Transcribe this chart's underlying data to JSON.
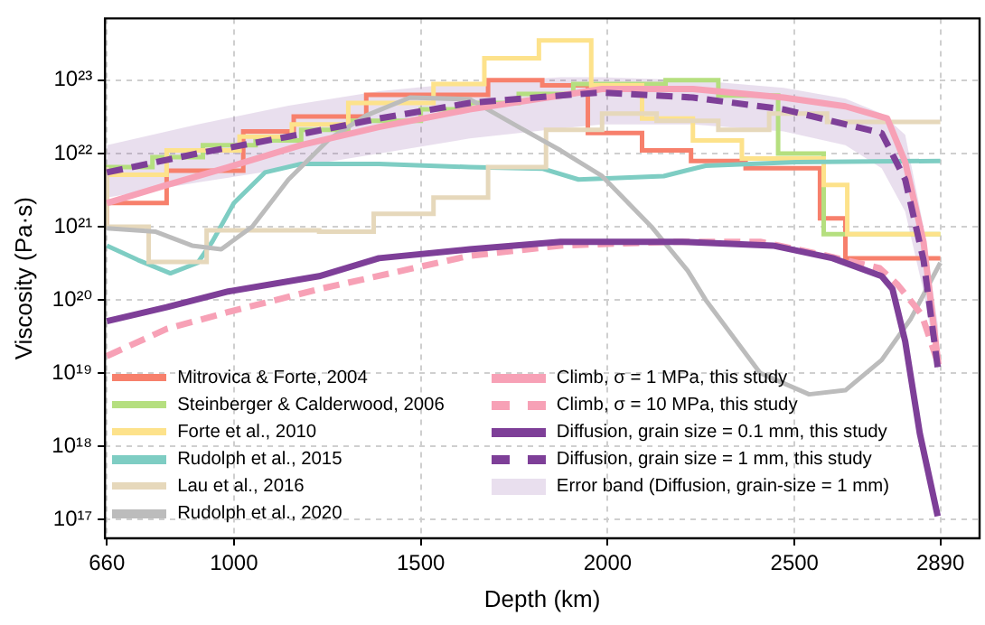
{
  "chart_data": {
    "type": "line",
    "xlabel": "Depth (km)",
    "ylabel": "Viscosity (Pa·s)",
    "log": "y",
    "grid": true,
    "legend": "bottom",
    "xlim": [
      655,
      2995
    ],
    "xticks": [
      660,
      1000,
      1500,
      2000,
      2500,
      2890
    ],
    "ylim": [
      5.5e+16,
      7e+23
    ],
    "yticks": [
      {
        "value": 1e+17,
        "label": "10¹⁷"
      },
      {
        "value": 1e+18,
        "label": "10¹⁸"
      },
      {
        "value": 1e+19,
        "label": "10¹⁹"
      },
      {
        "value": 1e+20,
        "label": "10²⁰"
      },
      {
        "value": 1e+21,
        "label": "10²¹"
      },
      {
        "value": 1e+22,
        "label": "10²²"
      },
      {
        "value": 1e+23,
        "label": "10²³"
      }
    ],
    "series": [
      {
        "name": "Mitrovica & Forte, 2004",
        "type": "step",
        "color": "#f7806c",
        "line_style": "solid",
        "x": [
          660,
          820,
          1025,
          1160,
          1354,
          1680,
          1825,
          1947,
          2092,
          2223,
          2369,
          2568,
          2636,
          2782,
          2890
        ],
        "values": [
          1e+21,
          2.1e+21,
          5.8e+21,
          2e+22,
          3.2e+22,
          6.3e+22,
          1e+23,
          8.5e+22,
          1.9e+22,
          1.1e+22,
          7.9e+21,
          6.3e+21,
          1.3e+21,
          3.7e+20,
          3.7e+20
        ]
      },
      {
        "name": "Steinberger & Calderwood, 2006",
        "type": "step",
        "color": "#b5df7f",
        "line_style": "solid",
        "x": [
          660,
          782,
          917,
          1058,
          1180,
          1306,
          1500,
          1631,
          1762,
          1908,
          2155,
          2296,
          2456,
          2578,
          2714,
          2890
        ],
        "values": [
          4.9e+21,
          6.5e+21,
          8.9e+21,
          1.3e+22,
          1.5e+22,
          2.1e+22,
          2.8e+22,
          4e+22,
          4.9e+22,
          6.5e+22,
          8.9e+22,
          1e+23,
          6.2e+22,
          1e+22,
          7.9e+20,
          7.9e+20
        ]
      },
      {
        "name": "Forte et al., 2010",
        "type": "step",
        "color": "#fde28b",
        "line_style": "solid",
        "x": [
          660,
          820,
          1015,
          1155,
          1306,
          1534,
          1670,
          1816,
          1956,
          2092,
          2228,
          2359,
          2578,
          2641,
          2786,
          2890
        ],
        "values": [
          1.7e+21,
          5.1e+21,
          1.1e+22,
          1.7e+22,
          2.5e+22,
          4.9e+22,
          8.9e+22,
          2e+23,
          3.5e+23,
          8.5e+22,
          3e+22,
          1.5e+22,
          8.5e+21,
          3.7e+21,
          7.9e+20,
          7.9e+20
        ]
      },
      {
        "name": "Rudolph et al., 2015",
        "type": "line",
        "color": "#7ecdc3",
        "line_style": "solid",
        "x": [
          660,
          743,
          830,
          903,
          942,
          1000,
          1083,
          1180,
          1388,
          1631,
          1825,
          1922,
          2150,
          2262,
          2505,
          2890
        ],
        "values": [
          5.5e+20,
          3.5e+20,
          2.3e+20,
          3.2e+20,
          6.2e+20,
          2.1e+21,
          5.5e+21,
          7.2e+21,
          7.2e+21,
          6.5e+21,
          6.2e+21,
          4.4e+21,
          4.9e+21,
          6.8e+21,
          7.6e+21,
          7.9e+21
        ]
      },
      {
        "name": "Lau et al., 2016",
        "type": "step",
        "color": "#e6d8bb",
        "line_style": "solid",
        "x": [
          660,
          772,
          927,
          1228,
          1374,
          1534,
          1680,
          1835,
          1985,
          2131,
          2296,
          2432,
          2587,
          2748,
          2890
        ],
        "values": [
          6.5e+21,
          1e+21,
          3.3e+20,
          8.9e+20,
          8.5e+20,
          1.5e+21,
          2.5e+21,
          6.5e+21,
          2.1e+22,
          3.5e+22,
          2.8e+22,
          2.1e+22,
          3.5e+22,
          2.7e+22,
          2.7e+22
        ]
      },
      {
        "name": "Rudolph et al., 2020",
        "type": "line",
        "color": "#bcbcbc",
        "line_style": "solid",
        "x": [
          660,
          791,
          888,
          966,
          1049,
          1146,
          1257,
          1354,
          1471,
          1631,
          1762,
          1874,
          1985,
          2117,
          2214,
          2262,
          2408,
          2539,
          2636,
          2733,
          2811,
          2890
        ],
        "values": [
          9.5e+20,
          8.5e+20,
          5.5e+20,
          4.9e+20,
          1e+21,
          4.4e+21,
          1.6e+22,
          3.3e+22,
          5.8e+22,
          5.5e+22,
          2.3e+22,
          1.1e+22,
          4.9e+21,
          1e+21,
          2.5e+20,
          1e+20,
          1e+19,
          5.1e+18,
          5.8e+18,
          1.5e+19,
          5.5e+19,
          3.2e+20
        ]
      },
      {
        "name": "Climb, σ = 1 MPa, this study",
        "type": "line",
        "color": "#f7a1b6",
        "line_style": "solid",
        "x": [
          660,
          820,
          985,
          1180,
          1388,
          1631,
          1874,
          1985,
          2228,
          2471,
          2636,
          2748,
          2796,
          2845,
          2885
        ],
        "values": [
          2.1e+21,
          3.7e+21,
          6.5e+21,
          1.3e+22,
          2.3e+22,
          4e+22,
          6.2e+22,
          7.6e+22,
          7.6e+22,
          5.8e+22,
          4.4e+22,
          3e+22,
          7.6e+21,
          6.2e+20,
          1.3e+19
        ]
      },
      {
        "name": "Climb, σ = 10 MPa, this study",
        "type": "line",
        "color": "#f7a1b6",
        "line_style": "dashed",
        "x": [
          660,
          820,
          985,
          1228,
          1631,
          1874,
          2165,
          2408,
          2568,
          2728,
          2776,
          2840,
          2885
        ],
        "values": [
          1.7e+19,
          4e+19,
          6.8e+19,
          1.4e+20,
          4e+20,
          5.5e+20,
          6.2e+20,
          6.2e+20,
          4.2e+20,
          2.7e+20,
          1.6e+20,
          6.3e+19,
          1.3e+19
        ]
      },
      {
        "name": "Diffusion, grain size = 0.1 mm, this study",
        "type": "line",
        "color": "#7e3f98",
        "line_style": "solid",
        "x": [
          660,
          820,
          985,
          1228,
          1388,
          1631,
          1874,
          2199,
          2442,
          2602,
          2733,
          2762,
          2796,
          2835,
          2883
        ],
        "values": [
          5.1e+19,
          7.9e+19,
          1.3e+20,
          2.1e+20,
          3.7e+20,
          4.9e+20,
          6.2e+20,
          6.2e+20,
          5.5e+20,
          3.7e+20,
          2.1e+20,
          1.4e+20,
          2.7e+19,
          1.5e+18,
          1.1e+17
        ]
      },
      {
        "name": "Diffusion, grain size = 1 mm, this study",
        "type": "line",
        "color": "#7e3f98",
        "line_style": "dashed",
        "x": [
          660,
          903,
          1146,
          1388,
          1631,
          1874,
          1985,
          2228,
          2471,
          2636,
          2733,
          2796,
          2845,
          2885
        ],
        "values": [
          5.5e+21,
          1e+22,
          1.7e+22,
          3e+22,
          4.9e+22,
          6.2e+22,
          6.8e+22,
          5.8e+22,
          4e+22,
          2.5e+22,
          1.9e+22,
          4.4e+21,
          3.5e+20,
          1e+19
        ],
        "lower": [
          2.5e+21,
          4e+21,
          6.3e+21,
          1e+22,
          1.6e+22,
          2.2e+22,
          2.5e+22,
          2.5e+22,
          2e+22,
          1.3e+22,
          6.3e+21,
          1.6e+21,
          1.3e+20,
          1e+19
        ],
        "upper": [
          1.3e+22,
          2.5e+22,
          4.5e+22,
          7.1e+22,
          9.3e+22,
          1.1e+23,
          1.1e+23,
          1e+23,
          7.9e+22,
          5.6e+22,
          3.5e+22,
          1.8e+22,
          1e+21,
          4e+19
        ]
      }
    ],
    "annotations": [
      "Error band (Diffusion, grain-size = 1 mm)"
    ]
  }
}
